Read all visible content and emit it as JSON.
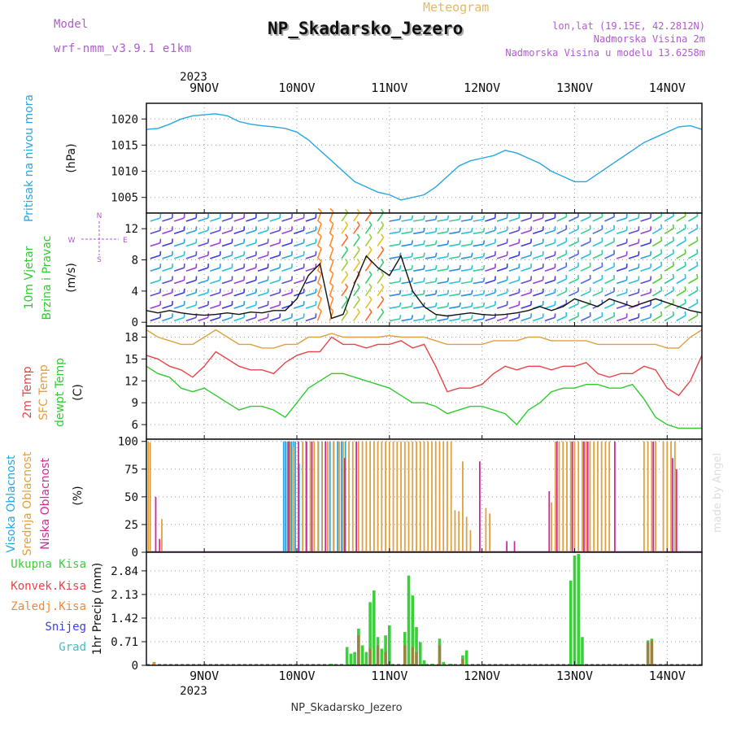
{
  "header": {
    "model_label": "Model",
    "model_name": "wrf-nmm_v3.9.1 e1km",
    "meteogram_label": "Meteogram",
    "station": "NP_Skadarsko_Jezero",
    "lonlat": "lon,lat (19.15E, 42.2812N)",
    "elevation": "Nadmorska Visina 2m",
    "model_elevation": "Nadmorska Visina u modelu 13.6258m",
    "footer_station": "NP_Skadarsko_Jezero",
    "watermark": "made by Angel"
  },
  "axis": {
    "year": "2023",
    "day_labels": [
      "9NOV",
      "10NOV",
      "11NOV",
      "12NOV",
      "13NOV",
      "14NOV"
    ]
  },
  "colors": {
    "pressure": "#29a6e0",
    "temp2m": "#e84545",
    "sfc": "#e0a040",
    "dewpt": "#2ecc2e",
    "high_cloud": "#29a6e0",
    "mid_cloud": "#e0a040",
    "low_cloud": "#d02a9a",
    "total_precip": "#3ccf3c",
    "conv_precip": "#e84545",
    "frozen_precip": "#f08a3a",
    "snow": "#4040e0",
    "hail": "#40c0c0",
    "purple_text": "#b05bd0",
    "orange_text": "#e8b860"
  },
  "chart_data": [
    {
      "type": "line",
      "panel": "pressure",
      "ylabel": "Pritisak na nivou mora",
      "unit": "(hPa)",
      "ylim": [
        1002,
        1023
      ],
      "yticks": [
        1005,
        1010,
        1015,
        1020
      ],
      "x_hours": [
        0,
        3,
        6,
        9,
        12,
        15,
        18,
        21,
        24,
        27,
        30,
        33,
        36,
        39,
        42,
        45,
        48,
        51,
        54,
        57,
        60,
        63,
        66,
        69,
        72,
        75,
        78,
        81,
        84,
        87,
        90,
        93,
        96,
        99,
        102,
        105,
        108,
        111,
        114,
        117,
        120,
        123,
        126,
        129,
        132,
        135,
        138,
        141,
        144
      ],
      "series": [
        {
          "values": [
            1018,
            1018.2,
            1019,
            1020,
            1020.6,
            1020.8,
            1021,
            1020.6,
            1019.5,
            1019,
            1018.7,
            1018.5,
            1018.2,
            1017.5,
            1016,
            1014,
            1012,
            1010,
            1008,
            1007,
            1006,
            1005.5,
            1004.5,
            1005,
            1005.5,
            1007,
            1009,
            1011,
            1012,
            1012.5,
            1013,
            1014,
            1013.5,
            1012.5,
            1011.5,
            1010,
            1009,
            1008,
            1008,
            1009.5,
            1011,
            1012.5,
            1014,
            1015.5,
            1016.5,
            1017.5,
            1018.5,
            1018.7,
            1018
          ]
        }
      ]
    },
    {
      "type": "line",
      "panel": "wind",
      "ylabel": "10m Vjetar Brzina i Pravac",
      "unit": "(m/s)",
      "ylim": [
        -0.5,
        14
      ],
      "yticks": [
        0,
        4,
        8,
        12
      ],
      "compass": {
        "n": "N",
        "s": "S",
        "w": "W",
        "e": "E"
      },
      "x_hours": [
        0,
        3,
        6,
        9,
        12,
        15,
        18,
        21,
        24,
        27,
        30,
        33,
        36,
        39,
        42,
        45,
        48,
        51,
        54,
        57,
        60,
        63,
        66,
        69,
        72,
        75,
        78,
        81,
        84,
        87,
        90,
        93,
        96,
        99,
        102,
        105,
        108,
        111,
        114,
        117,
        120,
        123,
        126,
        129,
        132,
        135,
        138,
        141,
        144
      ],
      "series": [
        {
          "values": [
            1.5,
            1.2,
            1.5,
            1.2,
            1,
            0.9,
            1,
            1.2,
            1,
            1.3,
            1.2,
            1.5,
            1.5,
            3,
            6,
            7.5,
            0.5,
            1,
            5,
            8.5,
            7,
            6,
            8.5,
            4,
            2,
            1,
            0.8,
            1,
            1.2,
            1,
            0.9,
            1,
            1.2,
            1.5,
            2,
            1.5,
            2,
            3,
            2.5,
            2,
            3,
            2.5,
            2,
            2.5,
            3,
            2.5,
            2,
            1.5,
            1.2
          ]
        }
      ]
    },
    {
      "type": "line",
      "panel": "temperature",
      "ylabels": [
        "2m Temp",
        "SFC Temp",
        "dewpt Temp"
      ],
      "unit": "(C)",
      "ylim": [
        4,
        19.5
      ],
      "yticks": [
        6,
        9,
        12,
        15,
        18
      ],
      "x_hours": [
        0,
        3,
        6,
        9,
        12,
        15,
        18,
        21,
        24,
        27,
        30,
        33,
        36,
        39,
        42,
        45,
        48,
        51,
        54,
        57,
        60,
        63,
        66,
        69,
        72,
        75,
        78,
        81,
        84,
        87,
        90,
        93,
        96,
        99,
        102,
        105,
        108,
        111,
        114,
        117,
        120,
        123,
        126,
        129,
        132,
        135,
        138,
        141,
        144
      ],
      "series": [
        {
          "name": "2m Temp",
          "values": [
            15.5,
            15,
            14,
            13.5,
            12.5,
            14,
            16,
            15,
            14,
            13.5,
            13.5,
            13,
            14.5,
            15.5,
            16,
            16,
            18,
            17,
            17,
            16.5,
            17,
            17,
            17.5,
            16.5,
            17,
            14,
            10.5,
            11,
            11,
            11.5,
            13,
            14,
            13.5,
            14,
            14,
            13.5,
            14,
            14,
            14.5,
            13,
            12.5,
            13,
            13,
            14,
            13.5,
            11,
            10,
            12,
            15.5
          ]
        },
        {
          "name": "SFC Temp",
          "values": [
            19,
            18,
            17.5,
            17,
            17,
            18,
            19,
            18,
            17,
            17,
            16.5,
            16.5,
            17,
            17,
            18,
            18,
            18.5,
            18,
            18,
            18,
            18,
            18.2,
            18,
            18,
            18,
            17.5,
            17,
            17,
            17,
            17,
            17.5,
            17.5,
            17.5,
            18,
            18,
            17.5,
            17.5,
            17.5,
            17.5,
            17,
            17,
            17,
            17,
            17,
            17,
            16.5,
            16.5,
            18,
            19
          ]
        },
        {
          "name": "dewpt Temp",
          "values": [
            14,
            13,
            12.5,
            11,
            10.5,
            11,
            10,
            9,
            8,
            8.5,
            8.5,
            8,
            7,
            9,
            11,
            12,
            13,
            13,
            12.5,
            12,
            11.5,
            11,
            10,
            9,
            9,
            8.5,
            7.5,
            8,
            8.5,
            8.5,
            8,
            7.5,
            6,
            8,
            9,
            10.5,
            11,
            11,
            11.5,
            11.5,
            11,
            11,
            11.5,
            9.5,
            7,
            6,
            5.5,
            5.5,
            5.5
          ]
        }
      ]
    },
    {
      "type": "bar",
      "panel": "cloud",
      "ylabels": [
        "Visoka Oblacnost",
        "Srednja Oblacnost",
        "Niska Oblacnost"
      ],
      "unit": "(%)",
      "ylim": [
        0,
        102
      ],
      "yticks": [
        0,
        25,
        50,
        75,
        100
      ],
      "series": [
        {
          "name": "Visoka Oblacnost",
          "bars": [
            [
              36,
              100
            ],
            [
              36.5,
              100
            ],
            [
              37,
              100
            ],
            [
              37.5,
              100
            ],
            [
              38,
              100
            ],
            [
              38.5,
              100
            ],
            [
              39,
              100
            ],
            [
              40,
              80
            ],
            [
              42,
              100
            ],
            [
              45,
              100
            ],
            [
              46,
              100
            ],
            [
              48,
              100
            ],
            [
              49,
              100
            ],
            [
              50,
              100
            ],
            [
              51,
              100
            ],
            [
              52,
              100
            ]
          ]
        },
        {
          "name": "Srednja Oblacnost",
          "bars": [
            [
              0.5,
              100
            ],
            [
              1,
              99
            ],
            [
              4,
              30
            ],
            [
              37.2,
              100
            ],
            [
              38,
              95
            ],
            [
              40.5,
              100
            ],
            [
              41.5,
              100
            ],
            [
              42.5,
              100
            ],
            [
              43.5,
              100
            ],
            [
              44.5,
              100
            ],
            [
              45.5,
              100
            ],
            [
              47,
              100
            ],
            [
              48.5,
              100
            ],
            [
              50,
              100
            ],
            [
              51,
              100
            ],
            [
              52.5,
              100
            ],
            [
              53.5,
              100
            ],
            [
              55,
              100
            ],
            [
              56,
              100
            ],
            [
              57,
              100
            ],
            [
              58,
              100
            ],
            [
              59,
              100
            ],
            [
              60,
              100
            ],
            [
              61,
              100
            ],
            [
              62,
              100
            ],
            [
              63,
              100
            ],
            [
              64,
              100
            ],
            [
              65,
              100
            ],
            [
              66,
              100
            ],
            [
              67,
              100
            ],
            [
              68,
              100
            ],
            [
              69,
              100
            ],
            [
              70,
              100
            ],
            [
              71,
              100
            ],
            [
              72,
              100
            ],
            [
              73,
              100
            ],
            [
              74,
              100
            ],
            [
              75,
              100
            ],
            [
              76,
              100
            ],
            [
              77,
              100
            ],
            [
              78,
              100
            ],
            [
              79,
              100
            ],
            [
              80,
              38
            ],
            [
              81,
              37
            ],
            [
              82,
              82
            ],
            [
              83,
              32
            ],
            [
              84,
              20
            ],
            [
              88,
              40
            ],
            [
              89,
              35
            ],
            [
              105,
              45
            ],
            [
              106,
              100
            ],
            [
              107,
              100
            ],
            [
              108,
              100
            ],
            [
              109,
              100
            ],
            [
              110,
              100
            ],
            [
              111,
              100
            ],
            [
              112,
              100
            ],
            [
              113,
              100
            ],
            [
              114,
              100
            ],
            [
              115,
              100
            ],
            [
              116,
              100
            ],
            [
              117,
              100
            ],
            [
              118,
              100
            ],
            [
              119,
              100
            ],
            [
              120,
              100
            ],
            [
              129,
              100
            ],
            [
              130,
              100
            ],
            [
              131,
              100
            ],
            [
              132,
              100
            ],
            [
              134,
              100
            ],
            [
              135,
              100
            ],
            [
              136,
              100
            ],
            [
              137,
              100
            ]
          ]
        },
        {
          "name": "Niska Oblacnost",
          "bars": [
            [
              2,
              50
            ],
            [
              3,
              12
            ],
            [
              36.5,
              100
            ],
            [
              39,
              100
            ],
            [
              41,
              100
            ],
            [
              42.5,
              100
            ],
            [
              46,
              100
            ],
            [
              51,
              85
            ],
            [
              54,
              100
            ],
            [
              86,
              82
            ],
            [
              93,
              10
            ],
            [
              95,
              10
            ],
            [
              104,
              55
            ],
            [
              106,
              100
            ],
            [
              110,
              100
            ],
            [
              113,
              100
            ],
            [
              114,
              100
            ],
            [
              121,
              100
            ],
            [
              131,
              100
            ],
            [
              136,
              85
            ],
            [
              137,
              75
            ]
          ]
        }
      ]
    },
    {
      "type": "bar",
      "panel": "precip",
      "ylabels": [
        "Ukupna Kisa",
        "Konvek.Kisa",
        "Zaledj.Kisa",
        "Snijeg",
        "Grad"
      ],
      "unit": "1hr Precip (mm)",
      "ylim": [
        0,
        3.4
      ],
      "yticks": [
        0,
        0.71,
        1.42,
        2.13,
        2.84
      ],
      "series": [
        {
          "name": "Ukupna Kisa",
          "bars": [
            [
              2,
              0.1
            ],
            [
              48,
              0.05
            ],
            [
              52,
              0.55
            ],
            [
              53,
              0.35
            ],
            [
              54,
              0.4
            ],
            [
              55,
              1.1
            ],
            [
              56,
              0.6
            ],
            [
              57,
              0.4
            ],
            [
              58,
              1.9
            ],
            [
              59,
              2.25
            ],
            [
              60,
              0.85
            ],
            [
              61,
              0.5
            ],
            [
              62,
              0.9
            ],
            [
              63,
              1.2
            ],
            [
              67,
              1.0
            ],
            [
              68,
              2.7
            ],
            [
              69,
              2.1
            ],
            [
              70,
              1.15
            ],
            [
              71,
              0.7
            ],
            [
              72,
              0.15
            ],
            [
              74,
              0.05
            ],
            [
              76,
              0.8
            ],
            [
              77,
              0.1
            ],
            [
              79,
              0.05
            ],
            [
              82,
              0.3
            ],
            [
              83,
              0.45
            ],
            [
              110,
              2.55
            ],
            [
              111,
              3.3
            ],
            [
              112,
              3.35
            ],
            [
              113,
              0.85
            ],
            [
              130,
              0.75
            ],
            [
              131,
              0.8
            ]
          ]
        },
        {
          "name": "Konvek.Kisa",
          "bars": [
            [
              55,
              0.9
            ],
            [
              58,
              0.5
            ],
            [
              60,
              0.6
            ],
            [
              62,
              0.4
            ],
            [
              67,
              0.6
            ],
            [
              69,
              0.55
            ],
            [
              70,
              0.4
            ],
            [
              76,
              0.6
            ],
            [
              82,
              0.2
            ],
            [
              130,
              0.7
            ],
            [
              131,
              0.75
            ]
          ]
        },
        {
          "name": "Zaledj.Kisa",
          "bars": [
            [
              2,
              0.08
            ]
          ]
        },
        {
          "name": "Snijeg",
          "bars": []
        },
        {
          "name": "Grad",
          "bars": []
        }
      ]
    }
  ]
}
